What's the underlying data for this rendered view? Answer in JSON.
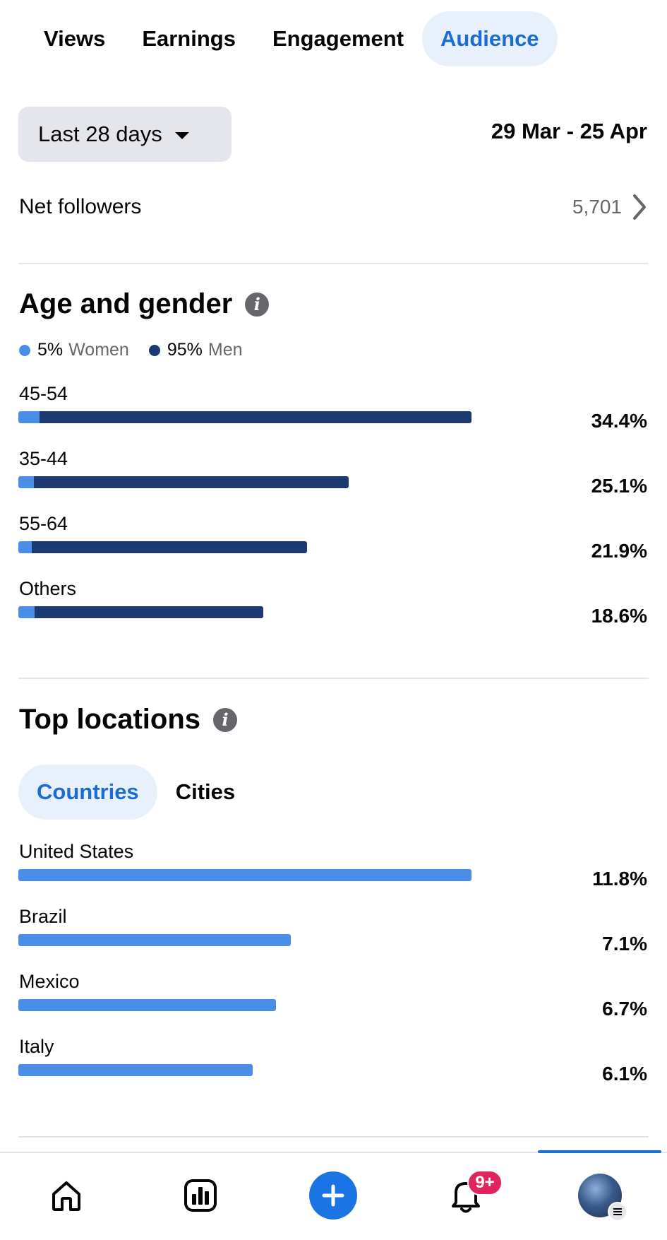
{
  "tabs": [
    {
      "label": "Views",
      "active": false
    },
    {
      "label": "Earnings",
      "active": false
    },
    {
      "label": "Engagement",
      "active": false
    },
    {
      "label": "Audience",
      "active": true
    }
  ],
  "range": {
    "selected": "Last 28 days",
    "dates": "29 Mar - 25 Apr"
  },
  "net_followers": {
    "label": "Net followers",
    "value": "5,701"
  },
  "age_gender": {
    "title": "Age and gender",
    "legend": [
      {
        "pct": "5%",
        "name": "Women",
        "color": "#4a8ee8"
      },
      {
        "pct": "95%",
        "name": "Men",
        "color": "#1c3a72"
      }
    ],
    "rows": [
      {
        "label": "45-54",
        "pct_label": "34.4%",
        "value": 34.4,
        "women_fraction": 0.046
      },
      {
        "label": "35-44",
        "pct_label": "25.1%",
        "value": 25.1,
        "women_fraction": 0.046
      },
      {
        "label": "55-64",
        "pct_label": "21.9%",
        "value": 21.9,
        "women_fraction": 0.046
      },
      {
        "label": "Others",
        "pct_label": "18.6%",
        "value": 18.6,
        "women_fraction": 0.066
      }
    ]
  },
  "top_locations": {
    "title": "Top locations",
    "subtabs": [
      {
        "label": "Countries",
        "active": true
      },
      {
        "label": "Cities",
        "active": false
      }
    ],
    "rows": [
      {
        "label": "United States",
        "pct_label": "11.8%",
        "value": 11.8
      },
      {
        "label": "Brazil",
        "pct_label": "7.1%",
        "value": 7.1
      },
      {
        "label": "Mexico",
        "pct_label": "6.7%",
        "value": 6.7
      },
      {
        "label": "Italy",
        "pct_label": "6.1%",
        "value": 6.1
      }
    ]
  },
  "bottom_nav": {
    "items": [
      "home-icon",
      "insights-icon",
      "create-icon",
      "notifications-icon",
      "profile-avatar"
    ],
    "notification_badge": "9+"
  },
  "colors": {
    "accent": "#1b6dd6",
    "women": "#4a8ee8",
    "men": "#1c3a72",
    "badge": "#e0245e"
  }
}
